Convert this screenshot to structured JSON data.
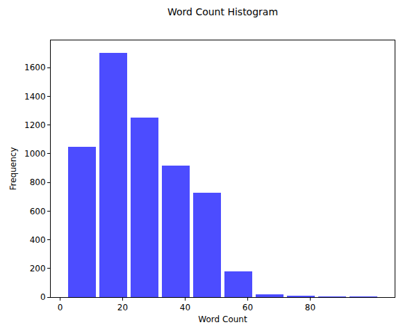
{
  "chart_data": {
    "type": "histogram",
    "title": "Word Count Histogram",
    "x_label": "Word Count",
    "y_label": "Frequency",
    "bins": [
      2,
      12,
      22,
      32,
      42,
      52,
      62,
      72,
      82,
      92,
      102
    ],
    "values": [
      1050,
      1705,
      1250,
      915,
      730,
      180,
      20,
      10,
      5,
      3
    ],
    "color": "#4c4cff",
    "xlim": [
      -3,
      107
    ],
    "xticks": [
      0,
      20,
      40,
      60,
      80
    ],
    "ylim": [
      0,
      1790
    ],
    "yticks": [
      0,
      200,
      400,
      600,
      800,
      1000,
      1200,
      1400,
      1600
    ],
    "grid": false
  }
}
